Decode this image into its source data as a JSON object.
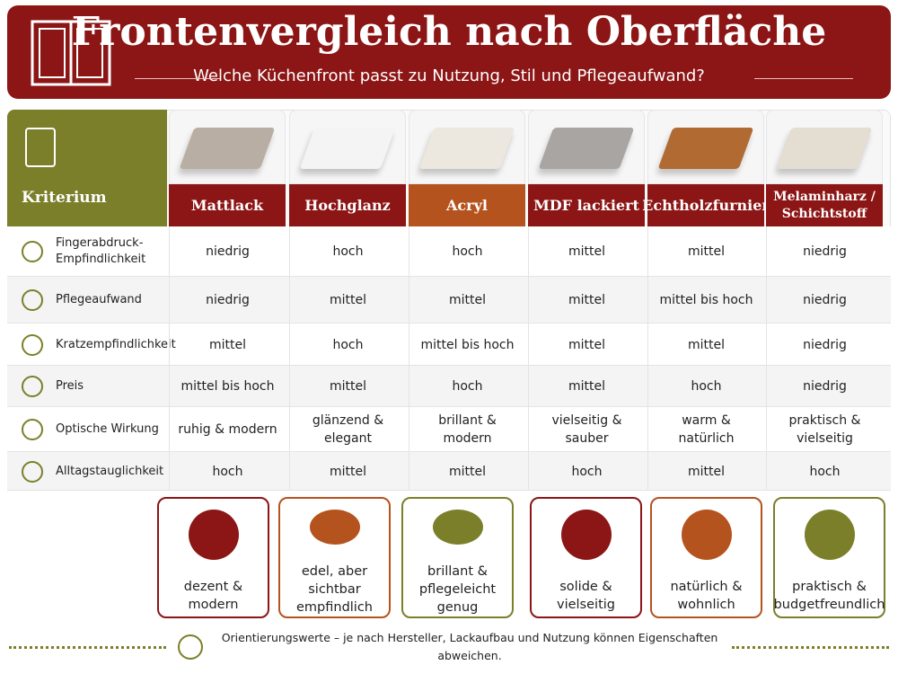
{
  "header": {
    "title": "Frontenvergleich nach Oberfläche",
    "subtitle": "Welche Küchenfront passt zu Nutzung, Stil und Pflegeaufwand?"
  },
  "table": {
    "header_label": "Kriterium",
    "columns": [
      "Mattlack",
      "Hochglanz",
      "Acryl",
      "MDF lackiert",
      "Echtholzfurnier",
      "Melaminharz /\nSchichtstoff"
    ],
    "rows": [
      {
        "label": "Fingerabdruck-\nEmpfindlichkeit",
        "values": [
          "niedrig",
          "hoch",
          "hoch",
          "mittel",
          "mittel",
          "niedrig"
        ]
      },
      {
        "label": "Pflegeaufwand",
        "values": [
          "niedrig",
          "mittel",
          "mittel",
          "mittel",
          "mittel bis hoch",
          "niedrig"
        ]
      },
      {
        "label": "Kratzempfindlichkeit",
        "values": [
          "mittel",
          "hoch",
          "mittel bis hoch",
          "mittel",
          "mittel",
          "niedrig"
        ]
      },
      {
        "label": "Preis",
        "values": [
          "mittel bis hoch",
          "mittel",
          "hoch",
          "mittel",
          "hoch",
          "niedrig"
        ]
      },
      {
        "label": "Optische Wirkung",
        "values": [
          "ruhig & modern",
          "glänzend &\nelegant",
          "brillant &\nmodern",
          "vielseitig &\nsauber",
          "warm &\nnatürlich",
          "praktisch &\nvielseitig"
        ]
      },
      {
        "label": "Alltagstauglichkeit",
        "values": [
          "hoch",
          "mittel",
          "mittel",
          "hoch",
          "mittel",
          "hoch"
        ]
      }
    ]
  },
  "cards": [
    "dezent &\nmodern",
    "edel, aber\nsichtbar empfindlich",
    "brillant &\npflegeleicht genug",
    "solide &\nvielseitig",
    "natürlich &\nwohnlich",
    "praktisch &\nbudgetfreundlich"
  ],
  "footer": {
    "note": "Orientierungswerte – je nach Hersteller, Lackaufbau und Nutzung können Eigenschaften abweichen."
  }
}
